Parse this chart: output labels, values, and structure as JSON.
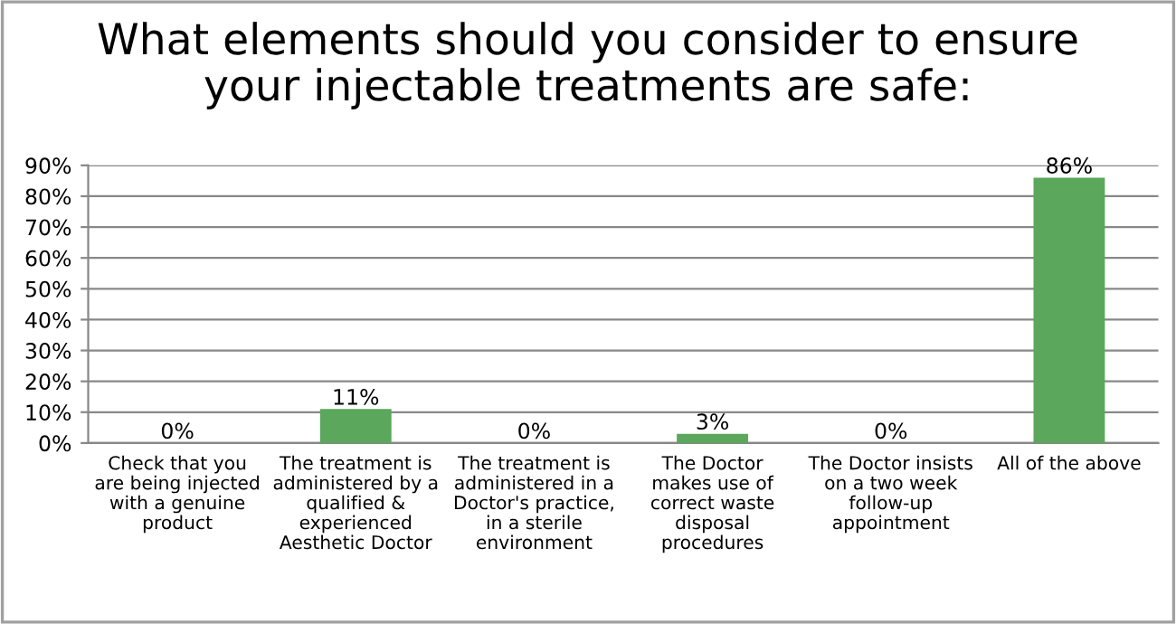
{
  "chart_data": {
    "type": "bar",
    "title": "What elements should you consider to ensure\nyour injectable treatments are safe:",
    "categories": [
      "Check that you\nare being injected\nwith a genuine\nproduct",
      "The treatment is\nadministered by a\nqualified &\nexperienced\nAesthetic Doctor",
      "The treatment is\nadministered in a\nDoctor's practice,\nin a sterile\nenvironment",
      "The Doctor\nmakes use of\ncorrect waste\ndisposal\nprocedures",
      "The Doctor insists\non a two week\nfollow-up\nappointment",
      "All of the above"
    ],
    "values": [
      0,
      11,
      0,
      3,
      0,
      86
    ],
    "value_labels": [
      "0%",
      "11%",
      "0%",
      "3%",
      "0%",
      "86%"
    ],
    "color": "#5ba75b",
    "ylim": [
      0,
      90
    ],
    "yticks": [
      {
        "value": 0,
        "label": "0%"
      },
      {
        "value": 10,
        "label": "10%"
      },
      {
        "value": 20,
        "label": "20%"
      },
      {
        "value": 30,
        "label": "30%"
      },
      {
        "value": 40,
        "label": "40%"
      },
      {
        "value": 50,
        "label": "50%"
      },
      {
        "value": 60,
        "label": "60%"
      },
      {
        "value": 70,
        "label": "70%"
      },
      {
        "value": 80,
        "label": "80%"
      },
      {
        "value": 90,
        "label": "90%"
      }
    ],
    "grid": "y",
    "legend": false
  }
}
